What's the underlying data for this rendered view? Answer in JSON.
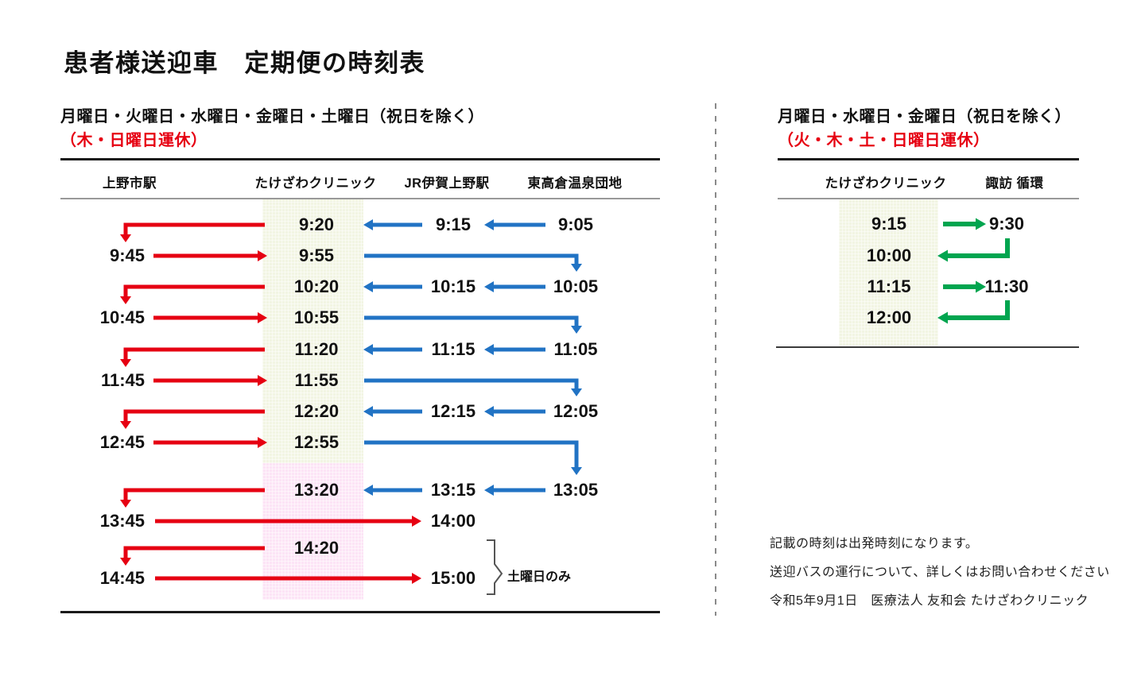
{
  "page": {
    "title": "患者様送迎車　定期便の時刻表"
  },
  "colors": {
    "red": "#e60012",
    "blue": "#2173c4",
    "green": "#00a54f",
    "pale_green_band": "#f2f5e3",
    "pink_band": "#fce4f6",
    "rule_dark": "#1a1a1a",
    "rule_gray": "#999999",
    "rule_medium": "#3a3a3a",
    "bracket_gray": "#555555",
    "divider_gray": "#8a8a8a"
  },
  "left_panel": {
    "service_days": "月曜日・火曜日・水曜日・金曜日・土曜日（祝日を除く）",
    "closed_days": "（木・日曜日運休）",
    "columns": [
      "上野市駅",
      "たけざわクリニック",
      "JR伊賀上野駅",
      "東高倉温泉団地"
    ],
    "saturday_note": "土曜日のみ",
    "rows": [
      {
        "ueno": "",
        "clinic": "9:20",
        "jr": "9:15",
        "higashi": "9:05",
        "pattern": "to-ueno"
      },
      {
        "ueno": "9:45",
        "clinic": "9:55",
        "jr": "",
        "higashi": "",
        "pattern": "to-higashi"
      },
      {
        "ueno": "",
        "clinic": "10:20",
        "jr": "10:15",
        "higashi": "10:05",
        "pattern": "to-ueno"
      },
      {
        "ueno": "10:45",
        "clinic": "10:55",
        "jr": "",
        "higashi": "",
        "pattern": "to-higashi"
      },
      {
        "ueno": "",
        "clinic": "11:20",
        "jr": "11:15",
        "higashi": "11:05",
        "pattern": "to-ueno"
      },
      {
        "ueno": "11:45",
        "clinic": "11:55",
        "jr": "",
        "higashi": "",
        "pattern": "to-higashi"
      },
      {
        "ueno": "",
        "clinic": "12:20",
        "jr": "12:15",
        "higashi": "12:05",
        "pattern": "to-ueno"
      },
      {
        "ueno": "12:45",
        "clinic": "12:55",
        "jr": "",
        "higashi": "",
        "pattern": "to-higashi-long"
      },
      {
        "ueno": "",
        "clinic": "13:20",
        "jr": "13:15",
        "higashi": "13:05",
        "pattern": "to-ueno"
      },
      {
        "ueno": "13:45",
        "clinic": "",
        "jr": "14:00",
        "higashi": "",
        "pattern": "to-jr"
      },
      {
        "ueno": "",
        "clinic": "14:20",
        "jr": "",
        "higashi": "",
        "pattern": "to-ueno-only"
      },
      {
        "ueno": "14:45",
        "clinic": "",
        "jr": "15:00",
        "higashi": "",
        "pattern": "to-jr"
      }
    ]
  },
  "right_panel": {
    "service_days": "月曜日・水曜日・金曜日（祝日を除く）",
    "closed_days": "（火・木・土・日曜日運休）",
    "columns": [
      "たけざわクリニック",
      "諏訪 循環"
    ],
    "rows": [
      {
        "clinic": "9:15",
        "suwa": "9:30",
        "pattern": "outbound"
      },
      {
        "clinic": "10:00",
        "suwa": "",
        "pattern": "return"
      },
      {
        "clinic": "11:15",
        "suwa": "11:30",
        "pattern": "outbound"
      },
      {
        "clinic": "12:00",
        "suwa": "",
        "pattern": "return"
      }
    ]
  },
  "footer": {
    "line1": "記載の時刻は出発時刻になります。",
    "line2": "送迎バスの運行について、詳しくはお問い合わせください",
    "line3": "令和5年9月1日　医療法人 友和会 たけざわクリニック"
  }
}
